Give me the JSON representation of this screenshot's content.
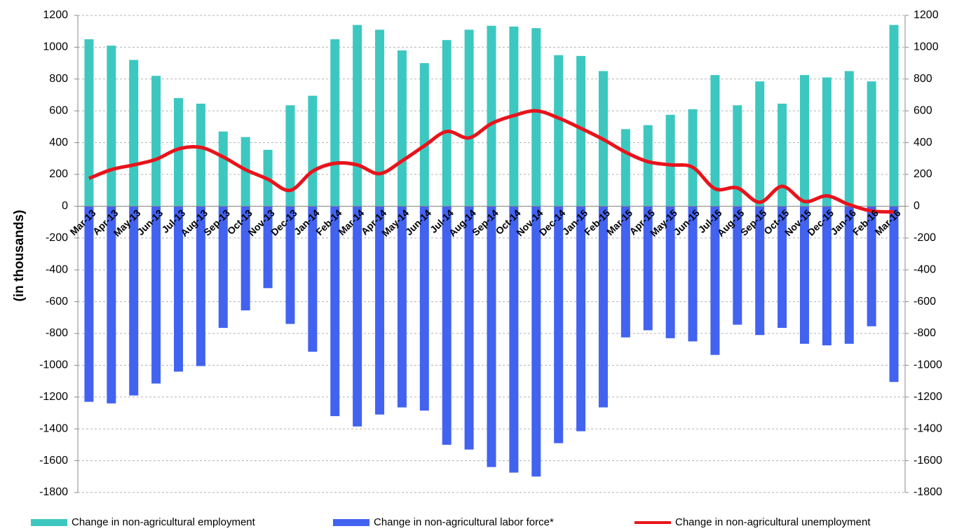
{
  "chart_data": {
    "type": "bar-line",
    "y_label": "(in thousands)",
    "categories": [
      "Mar-13",
      "Apr-13",
      "May-13",
      "Jun-13",
      "Jul-13",
      "Aug-13",
      "Sep-13",
      "Oct-13",
      "Nov-13",
      "Dec-13",
      "Jan-14",
      "Feb-14",
      "Mar-14",
      "Apr-14",
      "May-14",
      "Jun-14",
      "Jul-14",
      "Aug-14",
      "Sep-14",
      "Oct-14",
      "Nov-14",
      "Dec-14",
      "Jan-15",
      "Feb-15",
      "Mar-15",
      "Apr-15",
      "May-15",
      "Jun-15",
      "Jul-15",
      "Aug-15",
      "Sep-15",
      "Oct-15",
      "Nov-15",
      "Dec-15",
      "Jan-16",
      "Feb-16",
      "Mar-16"
    ],
    "series": [
      {
        "name": "Change in non-agricultural employment",
        "type": "bar",
        "color": "#3cc8c0",
        "values": [
          1050,
          1010,
          920,
          820,
          680,
          645,
          470,
          435,
          355,
          635,
          695,
          1050,
          1140,
          1110,
          980,
          900,
          1045,
          1110,
          1135,
          1130,
          1120,
          950,
          945,
          850,
          485,
          510,
          575,
          610,
          825,
          635,
          785,
          645,
          825,
          810,
          850,
          785,
          1140
        ]
      },
      {
        "name": "Change in non-agricultural labor force*",
        "type": "bar",
        "color": "#4262f0",
        "values": [
          -1230,
          -1240,
          -1190,
          -1115,
          -1040,
          -1005,
          -765,
          -655,
          -515,
          -740,
          -915,
          -1320,
          -1385,
          -1310,
          -1265,
          -1285,
          -1500,
          -1530,
          -1640,
          -1675,
          -1700,
          -1490,
          -1415,
          -1265,
          -825,
          -780,
          -830,
          -850,
          -935,
          -745,
          -810,
          -765,
          -865,
          -875,
          -865,
          -755,
          -1105
        ]
      },
      {
        "name": "Change in non-agricultural unemployment",
        "type": "line",
        "color": "#e8141c",
        "values": [
          175,
          230,
          260,
          295,
          360,
          370,
          310,
          230,
          170,
          100,
          220,
          270,
          260,
          205,
          285,
          380,
          470,
          430,
          520,
          570,
          600,
          555,
          490,
          420,
          340,
          280,
          260,
          245,
          110,
          115,
          25,
          125,
          30,
          65,
          10,
          -30,
          -35
        ]
      }
    ],
    "ylim": [
      -1800,
      1200
    ],
    "yticks": [
      -1800,
      -1600,
      -1400,
      -1200,
      -1000,
      -800,
      -600,
      -400,
      -200,
      0,
      200,
      400,
      600,
      800,
      1000,
      1200
    ],
    "y2lim": [
      -1800,
      1200
    ],
    "y2ticks": [
      -1800,
      -1600,
      -1400,
      -1200,
      -1000,
      -800,
      -600,
      -400,
      -200,
      0,
      200,
      400,
      600,
      800,
      1000,
      1200
    ],
    "grid": true
  }
}
